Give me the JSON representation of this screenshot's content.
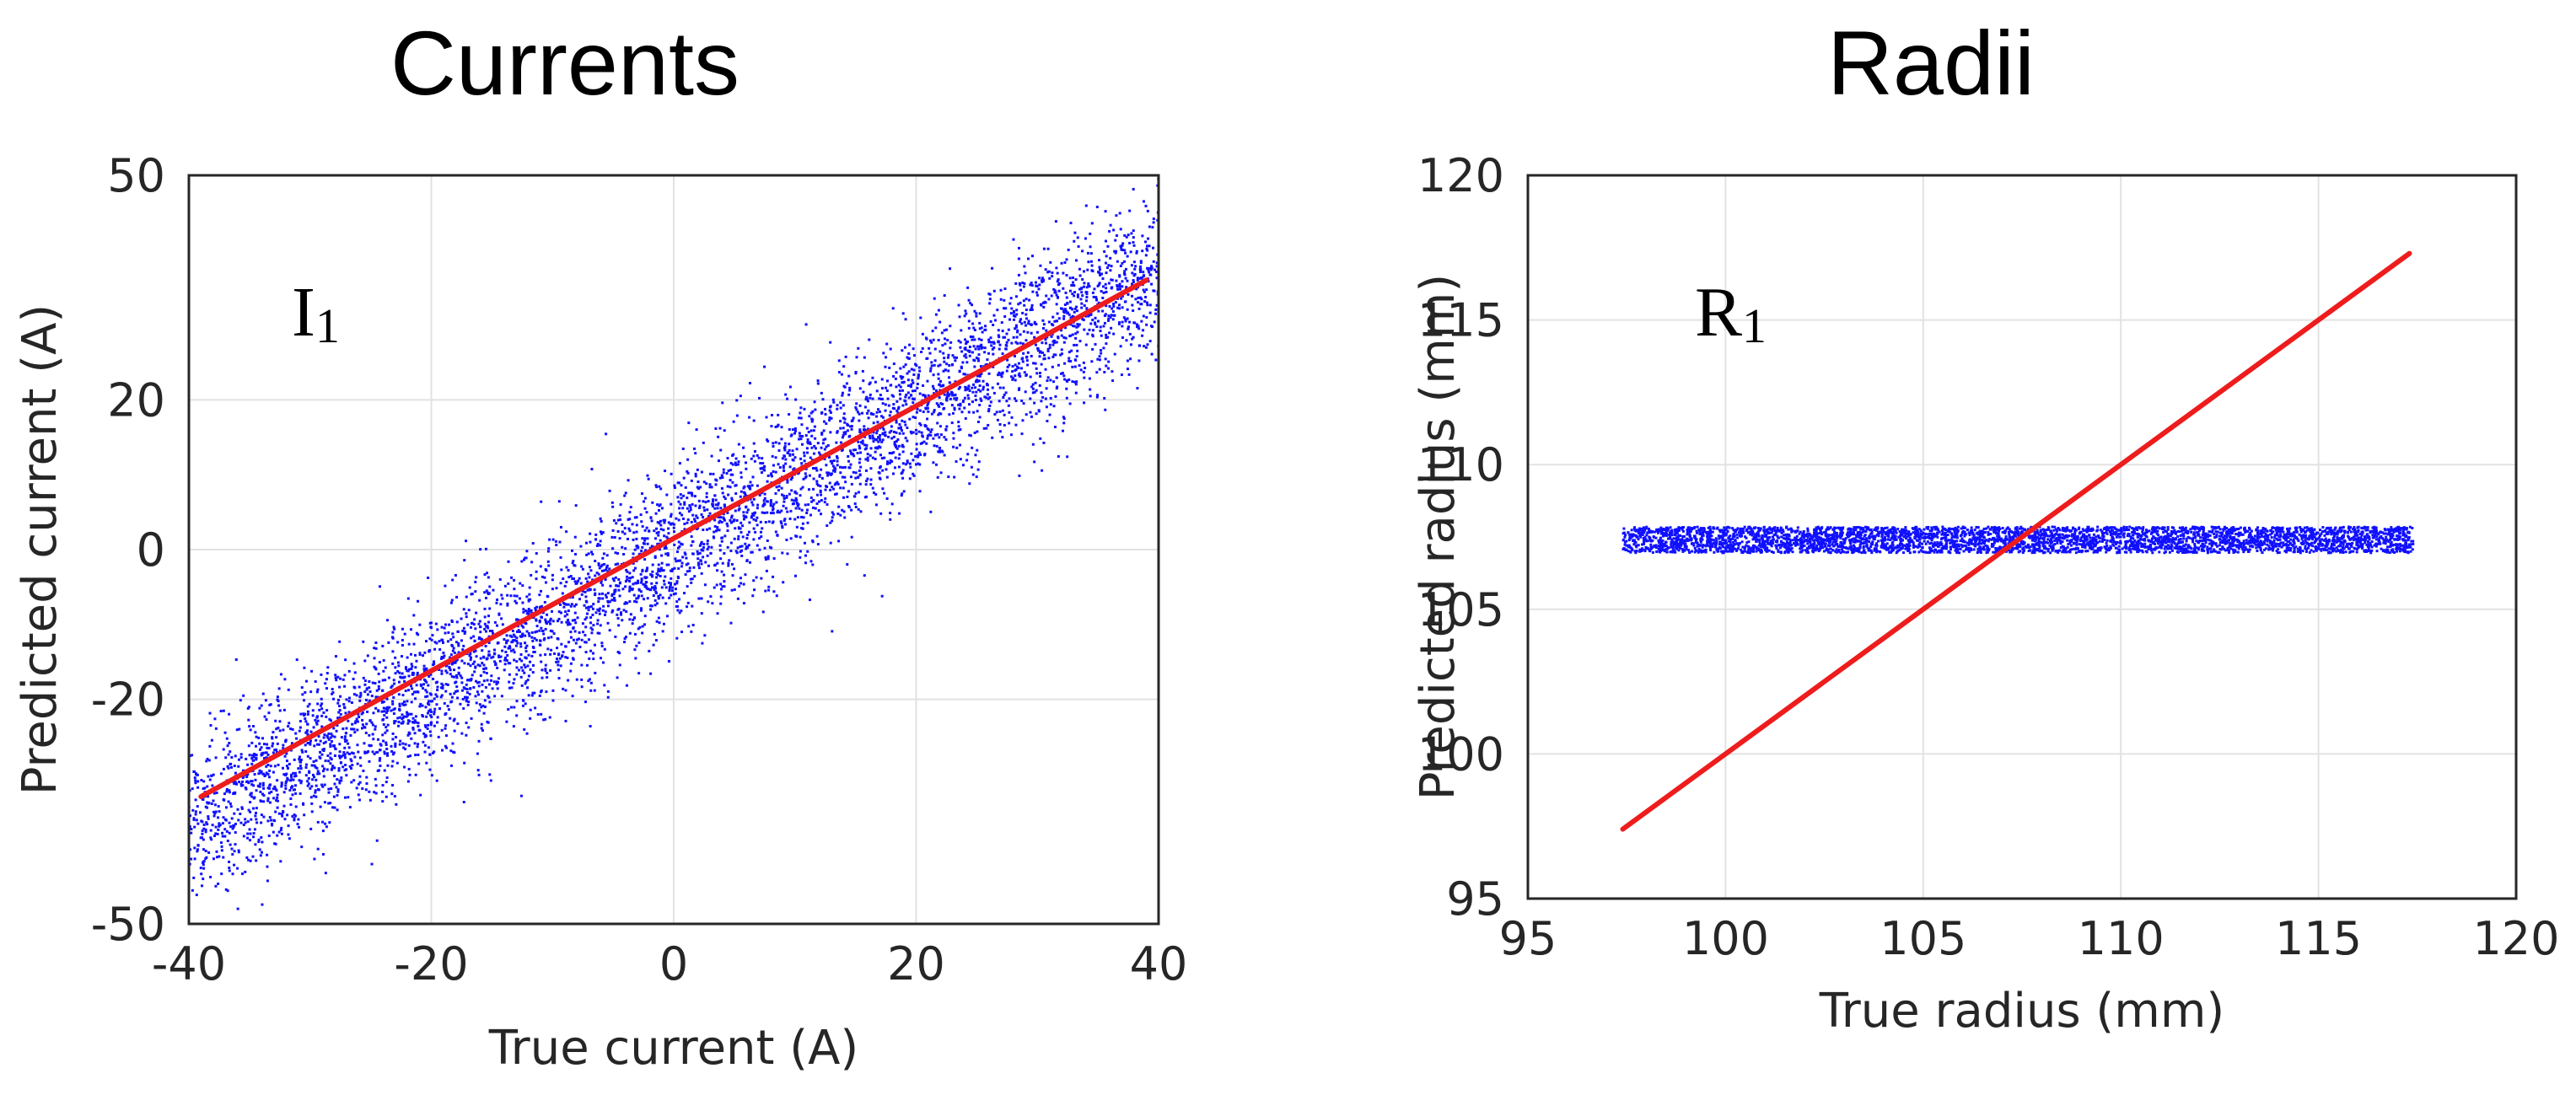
{
  "colors": {
    "points": "#1010ff",
    "fit_line": "#ee1c1c",
    "grid": "#e2e2e2",
    "axis": "#262626"
  },
  "chart_data": [
    {
      "type": "scatter",
      "title": "Currents",
      "xlabel": "True current (A)",
      "ylabel": "Predicted current (A)",
      "xlim": [
        -40,
        40
      ],
      "ylim": [
        -50,
        50
      ],
      "xticks": [
        -40,
        -20,
        0,
        20,
        40
      ],
      "yticks": [
        -50,
        -20,
        0,
        20,
        50
      ],
      "grid": true,
      "annotation": {
        "main": "I",
        "sub": "1"
      },
      "series": [
        {
          "kind": "scatter-band",
          "x_range": [
            -40,
            40
          ],
          "center_slope": 0.93,
          "center_intercept": 0,
          "spread": 5.5,
          "color": "#1010ff"
        },
        {
          "kind": "line",
          "x": [
            -39,
            39
          ],
          "y": [
            -33,
            36
          ],
          "color": "#ee1c1c"
        }
      ]
    },
    {
      "type": "scatter",
      "title": "Radii",
      "xlabel": "True radius (mm)",
      "ylabel": "Predicted radius (mm)",
      "xlim": [
        95,
        120
      ],
      "ylim": [
        95,
        120
      ],
      "xticks": [
        95,
        100,
        105,
        110,
        115,
        120
      ],
      "yticks": [
        95,
        100,
        105,
        110,
        115,
        120
      ],
      "grid": true,
      "annotation": {
        "main": "R",
        "sub": "1"
      },
      "series": [
        {
          "kind": "scatter-band",
          "x_range": [
            97.4,
            117.4
          ],
          "center_slope": 0,
          "center_intercept": 107.4,
          "spread": 0.45,
          "color": "#1010ff"
        },
        {
          "kind": "line",
          "x": [
            97.4,
            117.3
          ],
          "y": [
            97.4,
            117.3
          ],
          "color": "#ee1c1c"
        }
      ]
    }
  ]
}
